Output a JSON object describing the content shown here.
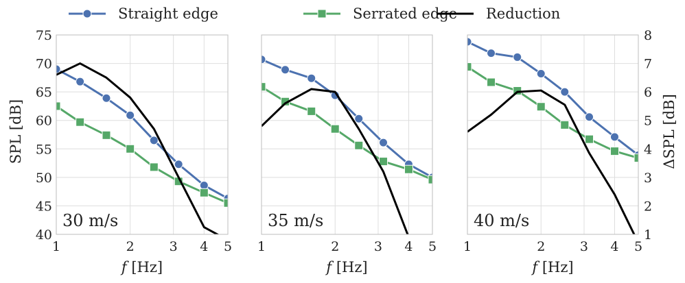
{
  "legend": {
    "items": [
      {
        "label": "Straight edge",
        "color": "#4c72b0",
        "marker": "circle"
      },
      {
        "label": "Serrated edge",
        "color": "#55a868",
        "marker": "square"
      },
      {
        "label": "Reduction",
        "color": "#000000",
        "marker": "none"
      }
    ]
  },
  "axes": {
    "ylabel_left": "SPL [dB]",
    "ylabel_right": "ΔSPL [dB]",
    "xlabel_italic": "f",
    "xlabel_unit": "[Hz]",
    "x_ticks": [
      1,
      2,
      3,
      4,
      5
    ],
    "x_tick_labels": [
      "1",
      "2",
      "3",
      "4",
      "5"
    ],
    "left_ticks": [
      40,
      45,
      50,
      55,
      60,
      65,
      70,
      75
    ],
    "left_tick_labels": [
      "40",
      "45",
      "50",
      "55",
      "60",
      "65",
      "70",
      "75"
    ],
    "right_ticks": [
      1,
      2,
      3,
      4,
      5,
      6,
      7,
      8
    ],
    "right_tick_labels": [
      "1",
      "2",
      "3",
      "4",
      "5",
      "6",
      "7",
      "8"
    ]
  },
  "chart_data": [
    {
      "type": "line",
      "panel_label": "30 m/s",
      "xscale": "log",
      "xlim": [
        1,
        5
      ],
      "ylim": [
        40,
        75
      ],
      "y2lim": [
        1,
        8
      ],
      "x": [
        1,
        1.25,
        1.6,
        2,
        2.5,
        3.15,
        4,
        5
      ],
      "series": [
        {
          "name": "Straight edge",
          "axis": "left",
          "values": [
            69.0,
            66.8,
            63.9,
            60.9,
            56.5,
            52.3,
            48.6,
            46.3
          ]
        },
        {
          "name": "Serrated edge",
          "axis": "left",
          "values": [
            62.5,
            59.7,
            57.4,
            55.0,
            51.8,
            49.3,
            47.3,
            45.5
          ]
        },
        {
          "name": "Reduction",
          "axis": "right",
          "values": [
            6.6,
            7.0,
            6.5,
            5.8,
            4.7,
            3.0,
            1.25,
            0.8
          ]
        }
      ]
    },
    {
      "type": "line",
      "panel_label": "35 m/s",
      "xscale": "log",
      "xlim": [
        1,
        5
      ],
      "ylim": [
        40,
        75
      ],
      "y2lim": [
        1,
        8
      ],
      "x": [
        1,
        1.25,
        1.6,
        2,
        2.5,
        3.15,
        4,
        5
      ],
      "series": [
        {
          "name": "Straight edge",
          "axis": "left",
          "values": [
            70.7,
            68.9,
            67.4,
            64.4,
            60.3,
            56.1,
            52.3,
            50.0
          ]
        },
        {
          "name": "Serrated edge",
          "axis": "left",
          "values": [
            65.9,
            63.3,
            61.6,
            58.5,
            55.6,
            52.8,
            51.4,
            49.6
          ]
        },
        {
          "name": "Reduction",
          "axis": "right",
          "values": [
            4.8,
            5.6,
            6.1,
            6.0,
            4.7,
            3.2,
            0.9,
            0.2
          ]
        }
      ]
    },
    {
      "type": "line",
      "panel_label": "40 m/s",
      "xscale": "log",
      "xlim": [
        1,
        5
      ],
      "ylim": [
        40,
        75
      ],
      "y2lim": [
        1,
        8
      ],
      "x": [
        1,
        1.25,
        1.6,
        2,
        2.5,
        3.15,
        4,
        5
      ],
      "series": [
        {
          "name": "Straight edge",
          "axis": "left",
          "values": [
            73.8,
            71.8,
            71.1,
            68.2,
            65.0,
            60.6,
            57.1,
            53.9
          ]
        },
        {
          "name": "Serrated edge",
          "axis": "left",
          "values": [
            69.4,
            66.7,
            65.2,
            62.4,
            59.2,
            56.7,
            54.6,
            53.4
          ]
        },
        {
          "name": "Reduction",
          "axis": "right",
          "values": [
            4.6,
            5.2,
            6.0,
            6.05,
            5.55,
            3.85,
            2.4,
            0.7
          ]
        }
      ]
    }
  ]
}
